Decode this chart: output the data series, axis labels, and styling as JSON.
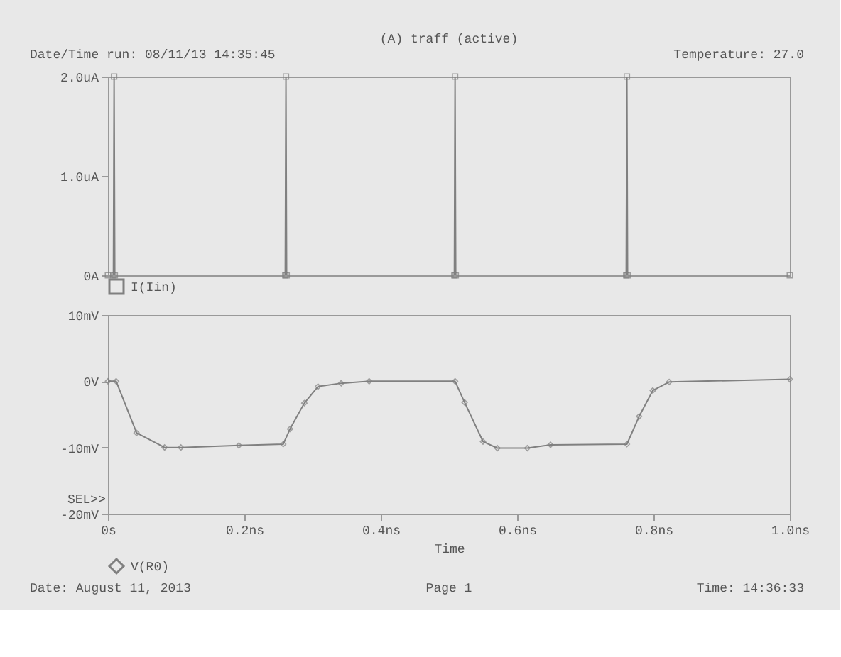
{
  "chart_data": [
    {
      "type": "line",
      "title": "(A) traff (active)",
      "annotations": [
        "Date/Time run: 08/11/13 14:35:45",
        "Temperature: 27.0"
      ],
      "series": [
        {
          "name": "I(Iin)",
          "color": "#808080",
          "x": [
            0,
            0.008,
            0.009,
            0.01,
            0.26,
            0.261,
            0.262,
            0.508,
            0.509,
            0.51,
            0.76,
            0.761,
            0.762,
            1.0
          ],
          "values": [
            0,
            0,
            2.0,
            0,
            0,
            2.0,
            0,
            0,
            2.0,
            0,
            0,
            2.0,
            0,
            0
          ]
        }
      ],
      "xlim": [
        0,
        1.0
      ],
      "ylim": [
        0,
        2.0
      ],
      "yticks": [
        {
          "value": 0,
          "label": "0A"
        },
        {
          "value": 1.0,
          "label": "1.0uA"
        },
        {
          "value": 2.0,
          "label": "2.0uA"
        }
      ],
      "tick_labels": "y",
      "grid": false,
      "legend": "bottom",
      "marker": "square",
      "line_style": "solid"
    },
    {
      "type": "line",
      "xlabel": "Time",
      "ylabel": "SEL>>",
      "annotations": [
        "Date: August 11, 2013",
        "Page 1",
        "Time: 14:36:33"
      ],
      "series": [
        {
          "name": "V(R0)",
          "color": "#808080",
          "x": [
            0,
            0.012,
            0.042,
            0.083,
            0.107,
            0.192,
            0.257,
            0.267,
            0.288,
            0.308,
            0.342,
            0.383,
            0.509,
            0.523,
            0.55,
            0.571,
            0.615,
            0.649,
            0.761,
            0.779,
            0.799,
            0.823,
            1.0
          ],
          "values": [
            0,
            0,
            -7.8,
            -10.0,
            -10.0,
            -9.7,
            -9.5,
            -7.2,
            -3.3,
            -0.8,
            -0.3,
            0,
            0,
            -3.2,
            -9.1,
            -10.1,
            -10.1,
            -9.6,
            -9.5,
            -5.3,
            -1.4,
            -0.1,
            0.3
          ]
        }
      ],
      "xlim": [
        0,
        1.0
      ],
      "xticks": [
        {
          "value": 0,
          "label": "0s"
        },
        {
          "value": 0.2,
          "label": "0.2ns"
        },
        {
          "value": 0.4,
          "label": "0.4ns"
        },
        {
          "value": 0.6,
          "label": "0.6ns"
        },
        {
          "value": 0.8,
          "label": "0.8ns"
        },
        {
          "value": 1.0,
          "label": "1.0ns"
        }
      ],
      "ylim": [
        -20,
        10
      ],
      "yticks": [
        {
          "value": -20,
          "label": "-20mV"
        },
        {
          "value": -10,
          "label": "-10mV"
        },
        {
          "value": 0,
          "label": "0V"
        },
        {
          "value": 10,
          "label": "10mV"
        }
      ],
      "grid": false,
      "legend": "bottom",
      "marker": "diamond",
      "line_style": "solid"
    }
  ]
}
